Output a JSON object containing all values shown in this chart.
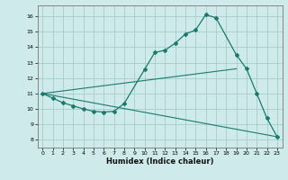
{
  "xlabel": "Humidex (Indice chaleur)",
  "bg_color": "#ceeaea",
  "line_color": "#1a7a6e",
  "grid_color": "#aacccc",
  "xlim": [
    -0.5,
    23.5
  ],
  "ylim": [
    7.5,
    16.7
  ],
  "xticks": [
    0,
    1,
    2,
    3,
    4,
    5,
    6,
    7,
    8,
    9,
    10,
    11,
    12,
    13,
    14,
    15,
    16,
    17,
    18,
    19,
    20,
    21,
    22,
    23
  ],
  "yticks": [
    8,
    9,
    10,
    11,
    12,
    13,
    14,
    15,
    16
  ],
  "line1_x": [
    0,
    1,
    2,
    3,
    4,
    5,
    6,
    7,
    8,
    10,
    11,
    12,
    13,
    14,
    15,
    16,
    17,
    19,
    20,
    21,
    22,
    23
  ],
  "line1_y": [
    11.0,
    10.7,
    10.4,
    10.2,
    10.0,
    9.85,
    9.8,
    9.85,
    10.35,
    12.55,
    13.65,
    13.8,
    14.25,
    14.85,
    15.1,
    16.1,
    15.9,
    13.5,
    12.6,
    11.0,
    9.4,
    8.2
  ],
  "line2_x": [
    0,
    19
  ],
  "line2_y": [
    11.0,
    12.6
  ],
  "line3_x": [
    0,
    23
  ],
  "line3_y": [
    11.0,
    8.2
  ]
}
